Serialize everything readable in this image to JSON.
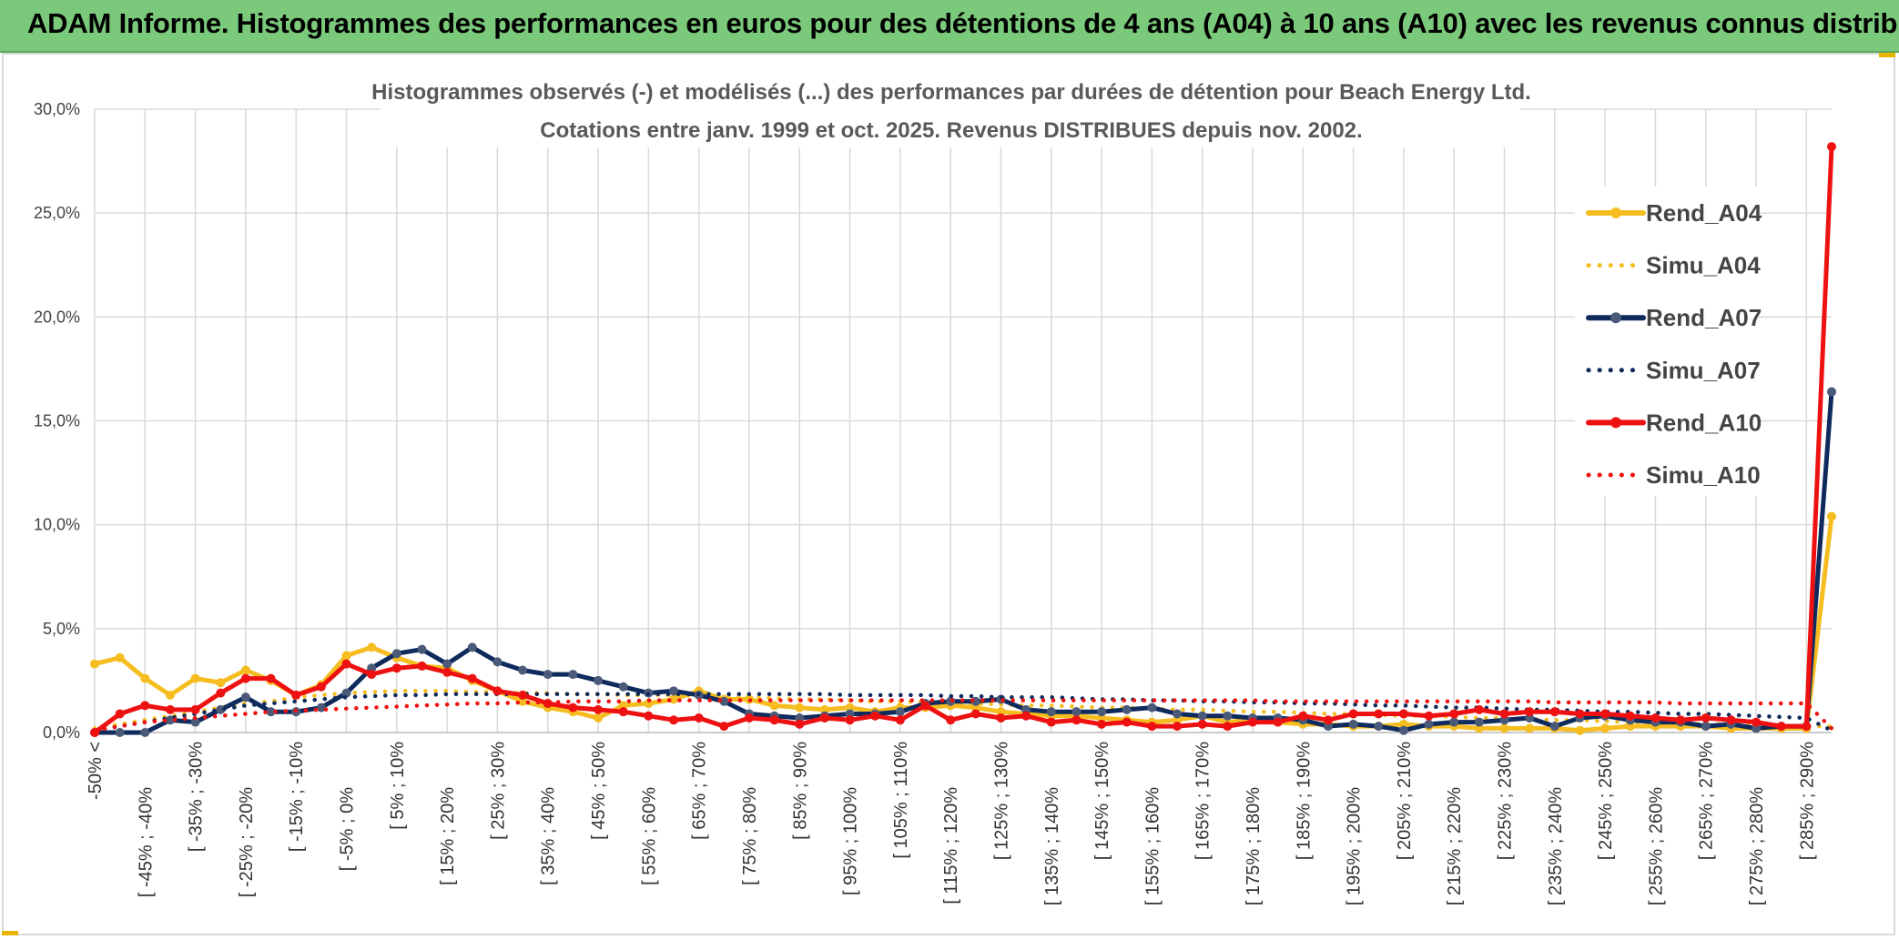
{
  "banner": {
    "title": "ADAM Informe. Histogrammes des performances en euros pour des détentions de 4 ans (A04) à 10 ans (A10) avec les revenus connus distribués"
  },
  "chart_data": {
    "type": "line",
    "title_line1": "Histogrammes observés (-) et modélisés (...) des performances par durées de détention pour Beach Energy Ltd.",
    "title_line2": "Cotations entre janv. 1999 et oct. 2025. Revenus DISTRIBUES depuis nov. 2002.",
    "ylim": [
      0,
      30
    ],
    "y_ticks": [
      "0,0%",
      "5,0%",
      "10,0%",
      "15,0%",
      "20,0%",
      "25,0%",
      "30,0%"
    ],
    "x_tick_labels": [
      "-50% <",
      "[ -45% ; -40%",
      "[ -35% ; -30%",
      "[ -25% ; -20%",
      "[ -15% ; -10%",
      "[ -5% ; 0%",
      "[ 5% ; 10%",
      "[ 15% ; 20%",
      "[ 25% ; 30%",
      "[ 35% ; 40%",
      "[ 45% ; 50%",
      "[ 55% ; 60%",
      "[ 65% ; 70%",
      "[ 75% ; 80%",
      "[ 85% ; 90%",
      "[ 95% ; 100%",
      "[ 105% ; 110%",
      "[ 115% ; 120%",
      "[ 125% ; 130%",
      "[ 135% ; 140%",
      "[ 145% ; 150%",
      "[ 155% ; 160%",
      "[ 165% ; 170%",
      "[ 175% ; 180%",
      "[ 185% ; 190%",
      "[ 195% ; 200%",
      "[ 205% ; 210%",
      "[ 215% ; 220%",
      "[ 225% ; 230%",
      "[ 235% ; 240%",
      "[ 245% ; 250%",
      "[ 255% ; 260%",
      "[ 265% ; 270%",
      "[ 275% ; 280%",
      "[ 285% ; 290%"
    ],
    "n_points": 70,
    "series": [
      {
        "name": "Rend_A04",
        "color": "#f5bd1f",
        "style": "solid",
        "markers": true,
        "values": [
          3.3,
          3.6,
          2.6,
          1.8,
          2.6,
          2.4,
          3.0,
          2.5,
          1.8,
          2.3,
          3.7,
          4.1,
          3.6,
          3.2,
          3.1,
          2.5,
          2.0,
          1.5,
          1.2,
          1.0,
          0.7,
          1.3,
          1.4,
          1.6,
          2.0,
          1.6,
          1.6,
          1.3,
          1.2,
          1.1,
          1.2,
          1.0,
          1.2,
          1.2,
          1.3,
          1.2,
          1.0,
          0.9,
          0.8,
          0.8,
          0.7,
          0.6,
          0.5,
          0.6,
          0.8,
          0.5,
          0.6,
          0.5,
          0.4,
          0.4,
          0.3,
          0.3,
          0.4,
          0.3,
          0.3,
          0.2,
          0.2,
          0.2,
          0.2,
          0.1,
          0.2,
          0.3,
          0.3,
          0.3,
          0.3,
          0.2,
          0.2,
          0.2,
          0.2,
          10.4
        ]
      },
      {
        "name": "Simu_A04",
        "color": "#f5bd1f",
        "style": "dotted",
        "markers": false,
        "values": [
          0.2,
          0.4,
          0.6,
          0.8,
          1.0,
          1.2,
          1.4,
          1.5,
          1.7,
          1.8,
          1.9,
          1.95,
          2.0,
          2.0,
          2.0,
          1.95,
          1.95,
          1.9,
          1.9,
          1.85,
          1.85,
          1.8,
          1.8,
          1.8,
          1.75,
          1.7,
          1.7,
          1.65,
          1.6,
          1.6,
          1.55,
          1.5,
          1.5,
          1.45,
          1.4,
          1.4,
          1.35,
          1.3,
          1.3,
          1.25,
          1.2,
          1.2,
          1.15,
          1.1,
          1.1,
          1.05,
          1.0,
          1.0,
          0.95,
          0.9,
          0.9,
          0.85,
          0.8,
          0.8,
          0.75,
          0.7,
          0.7,
          0.65,
          0.6,
          0.6,
          0.55,
          0.5,
          0.5,
          0.45,
          0.4,
          0.4,
          0.35,
          0.3,
          0.3,
          0.3
        ]
      },
      {
        "name": "Rend_A07",
        "color": "#0f2a5c",
        "style": "solid",
        "markers": true,
        "values": [
          0.0,
          0.0,
          0.0,
          0.6,
          0.5,
          1.1,
          1.7,
          1.0,
          1.0,
          1.2,
          1.9,
          3.1,
          3.8,
          4.0,
          3.3,
          4.1,
          3.4,
          3.0,
          2.8,
          2.8,
          2.5,
          2.2,
          1.9,
          2.0,
          1.8,
          1.5,
          0.9,
          0.8,
          0.7,
          0.8,
          0.9,
          0.9,
          1.0,
          1.4,
          1.5,
          1.5,
          1.6,
          1.1,
          1.0,
          1.0,
          1.0,
          1.1,
          1.2,
          0.9,
          0.8,
          0.8,
          0.7,
          0.7,
          0.6,
          0.3,
          0.4,
          0.3,
          0.1,
          0.4,
          0.5,
          0.5,
          0.6,
          0.7,
          0.3,
          0.7,
          0.8,
          0.6,
          0.5,
          0.5,
          0.3,
          0.4,
          0.2,
          0.3,
          0.3,
          16.4
        ]
      },
      {
        "name": "Simu_A07",
        "color": "#0f2a5c",
        "style": "dotted",
        "markers": false,
        "values": [
          0.1,
          0.3,
          0.5,
          0.7,
          0.9,
          1.1,
          1.3,
          1.4,
          1.5,
          1.6,
          1.7,
          1.75,
          1.8,
          1.8,
          1.85,
          1.85,
          1.85,
          1.85,
          1.85,
          1.85,
          1.85,
          1.85,
          1.85,
          1.85,
          1.85,
          1.85,
          1.85,
          1.85,
          1.85,
          1.85,
          1.8,
          1.8,
          1.8,
          1.8,
          1.75,
          1.75,
          1.7,
          1.7,
          1.7,
          1.65,
          1.6,
          1.6,
          1.55,
          1.55,
          1.5,
          1.5,
          1.45,
          1.45,
          1.4,
          1.4,
          1.35,
          1.3,
          1.3,
          1.25,
          1.2,
          1.2,
          1.15,
          1.1,
          1.1,
          1.05,
          1.0,
          1.0,
          0.95,
          0.9,
          0.9,
          0.85,
          0.8,
          0.75,
          0.7,
          0.1
        ]
      },
      {
        "name": "Rend_A10",
        "color": "#ee1111",
        "style": "solid",
        "markers": true,
        "values": [
          0.0,
          0.9,
          1.3,
          1.1,
          1.1,
          1.9,
          2.6,
          2.6,
          1.8,
          2.2,
          3.3,
          2.8,
          3.1,
          3.2,
          2.9,
          2.6,
          2.0,
          1.8,
          1.4,
          1.2,
          1.1,
          1.0,
          0.8,
          0.6,
          0.7,
          0.3,
          0.7,
          0.6,
          0.4,
          0.7,
          0.6,
          0.8,
          0.6,
          1.3,
          0.6,
          0.9,
          0.7,
          0.8,
          0.5,
          0.6,
          0.4,
          0.5,
          0.3,
          0.3,
          0.4,
          0.3,
          0.5,
          0.5,
          0.8,
          0.6,
          0.9,
          0.9,
          0.9,
          0.8,
          0.9,
          1.1,
          0.9,
          1.0,
          1.0,
          0.9,
          0.9,
          0.8,
          0.7,
          0.6,
          0.7,
          0.6,
          0.5,
          0.3,
          0.3,
          28.2
        ]
      },
      {
        "name": "Simu_A10",
        "color": "#ee1111",
        "style": "dotted",
        "markers": false,
        "values": [
          0.1,
          0.3,
          0.5,
          0.6,
          0.7,
          0.8,
          0.9,
          1.0,
          1.05,
          1.1,
          1.15,
          1.2,
          1.25,
          1.3,
          1.35,
          1.4,
          1.4,
          1.45,
          1.45,
          1.5,
          1.5,
          1.5,
          1.55,
          1.55,
          1.55,
          1.55,
          1.55,
          1.55,
          1.55,
          1.55,
          1.55,
          1.55,
          1.55,
          1.55,
          1.55,
          1.55,
          1.55,
          1.55,
          1.55,
          1.55,
          1.55,
          1.55,
          1.55,
          1.55,
          1.55,
          1.55,
          1.55,
          1.5,
          1.5,
          1.5,
          1.5,
          1.5,
          1.5,
          1.5,
          1.5,
          1.5,
          1.5,
          1.5,
          1.45,
          1.45,
          1.45,
          1.45,
          1.45,
          1.4,
          1.4,
          1.4,
          1.4,
          1.4,
          1.4,
          0.2
        ]
      }
    ],
    "legend": [
      "Rend_A04",
      "Simu_A04",
      "Rend_A07",
      "Simu_A07",
      "Rend_A10",
      "Simu_A10"
    ],
    "legend_position": "right",
    "grid": true
  }
}
